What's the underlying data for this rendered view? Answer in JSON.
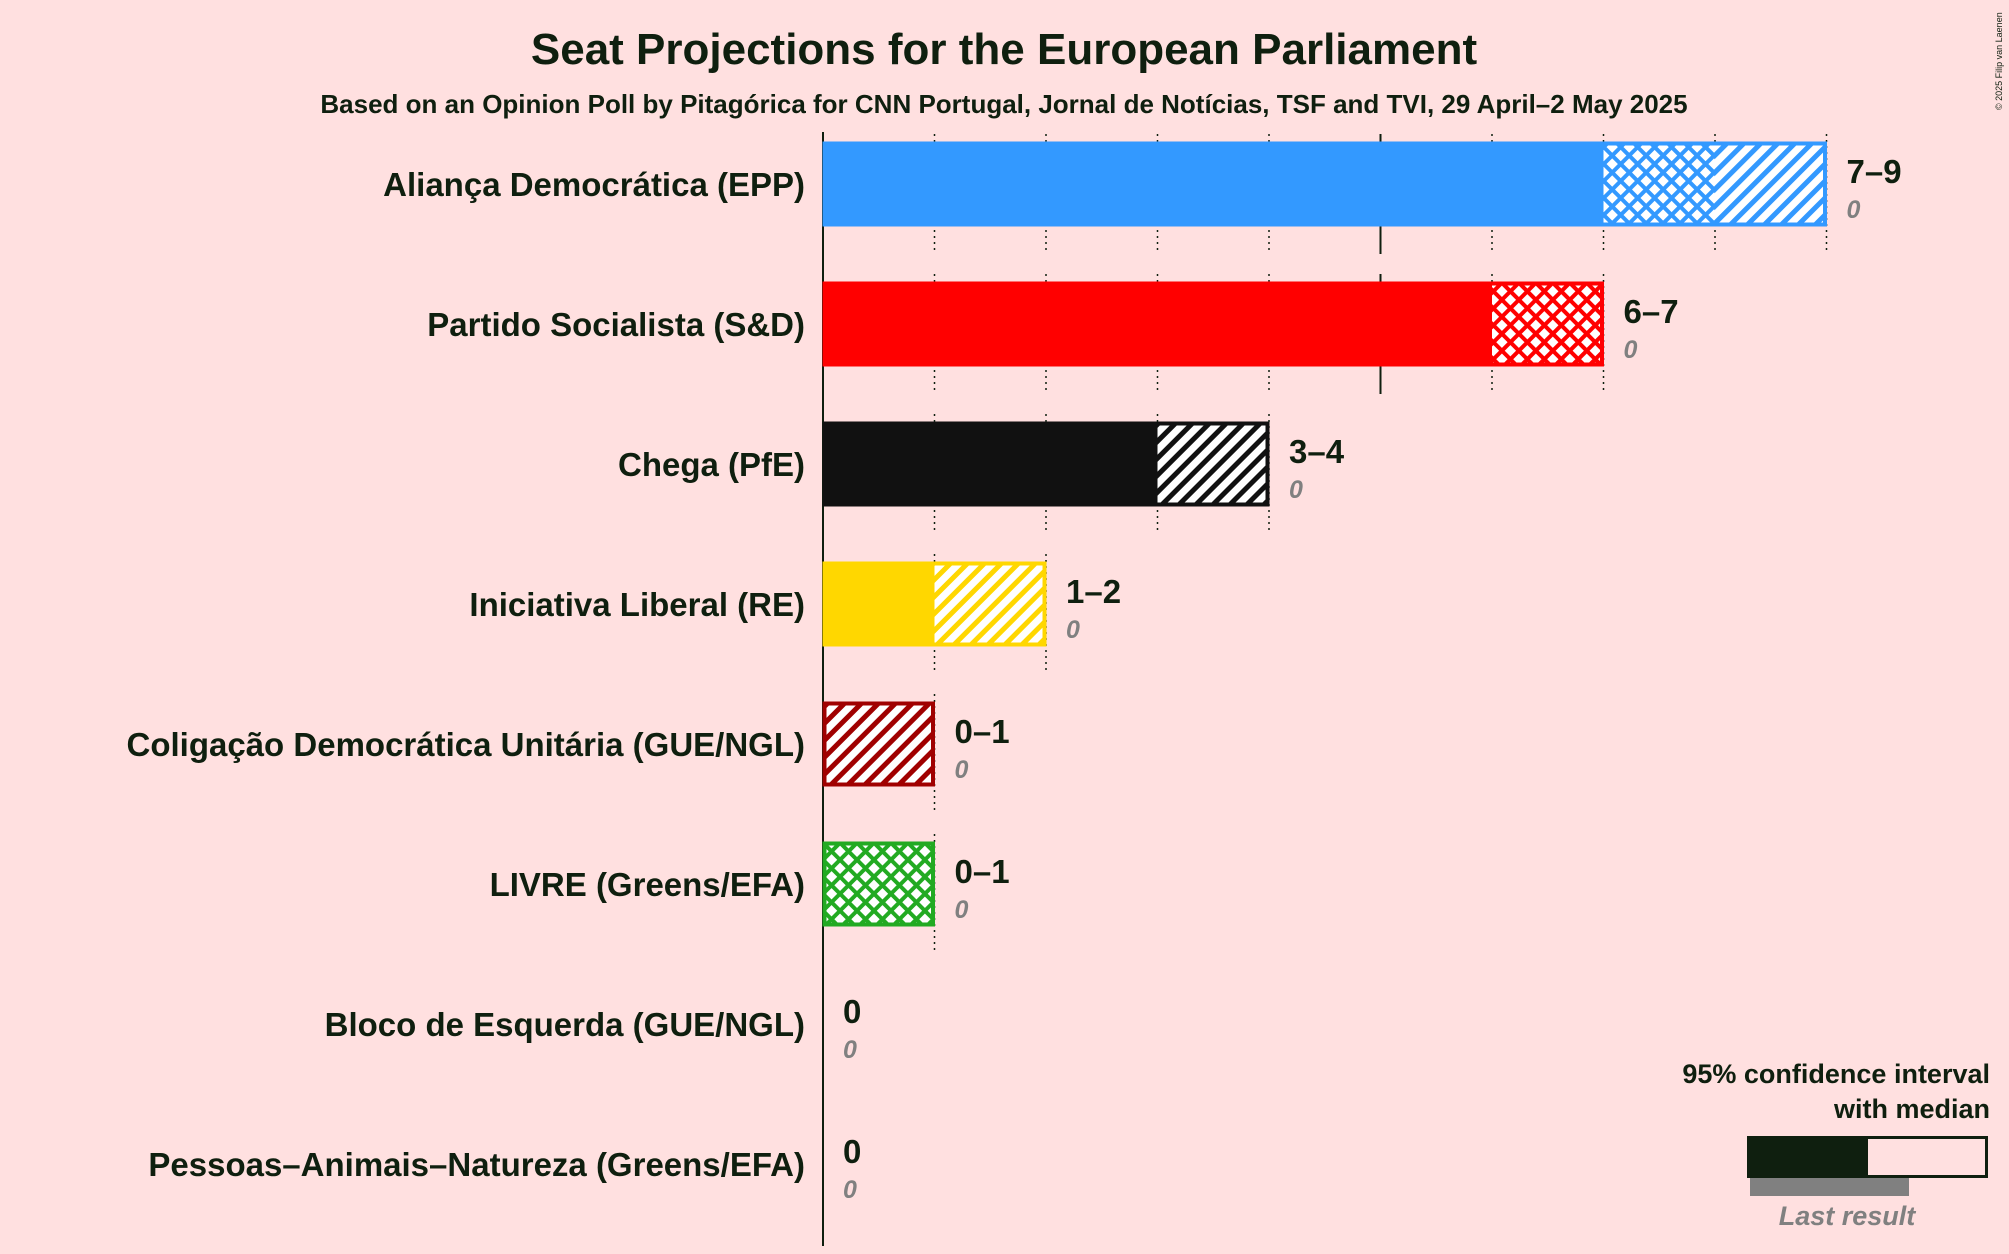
{
  "chart_data": {
    "type": "bar",
    "title": "Seat Projections for the European Parliament",
    "subtitle": "Based on an Opinion Poll by Pitagórica for CNN Portugal, Jornal de Notícias, TSF and TVI, 29 April–2 May 2025",
    "copyright": "© 2025 Filip van Laenen",
    "xlim": [
      0,
      9
    ],
    "categories": [
      "Aliança Democrática (EPP)",
      "Partido Socialista (S&D)",
      "Chega (PfE)",
      "Iniciativa Liberal (RE)",
      "Coligação Democrática Unitária (GUE/NGL)",
      "LIVRE (Greens/EFA)",
      "Bloco de Esquerda (GUE/NGL)",
      "Pessoas–Animais–Natureza (Greens/EFA)"
    ],
    "series": [
      {
        "party": "Aliança Democrática (EPP)",
        "color": "#3399FF",
        "low": 7,
        "median": 8,
        "high": 9,
        "range_label": "7–9",
        "last_result": 0,
        "last_label": "0"
      },
      {
        "party": "Partido Socialista (S&D)",
        "color": "#FF0000",
        "low": 6,
        "median": 7,
        "high": 7,
        "range_label": "6–7",
        "last_result": 0,
        "last_label": "0"
      },
      {
        "party": "Chega (PfE)",
        "color": "#111111",
        "low": 3,
        "median": 3,
        "high": 4,
        "range_label": "3–4",
        "last_result": 0,
        "last_label": "0"
      },
      {
        "party": "Iniciativa Liberal (RE)",
        "color": "#FFD700",
        "low": 1,
        "median": 1,
        "high": 2,
        "range_label": "1–2",
        "last_result": 0,
        "last_label": "0"
      },
      {
        "party": "Coligação Democrática Unitária (GUE/NGL)",
        "color": "#A00000",
        "low": 0,
        "median": 0,
        "high": 1,
        "range_label": "0–1",
        "last_result": 0,
        "last_label": "0"
      },
      {
        "party": "LIVRE (Greens/EFA)",
        "color": "#22AA22",
        "low": 0,
        "median": 1,
        "high": 1,
        "range_label": "0–1",
        "last_result": 0,
        "last_label": "0"
      },
      {
        "party": "Bloco de Esquerda (GUE/NGL)",
        "color": "#CC0033",
        "low": 0,
        "median": 0,
        "high": 0,
        "range_label": "0",
        "last_result": 0,
        "last_label": "0"
      },
      {
        "party": "Pessoas–Animais–Natureza (Greens/EFA)",
        "color": "#008080",
        "low": 0,
        "median": 0,
        "high": 0,
        "range_label": "0",
        "last_result": 0,
        "last_label": "0"
      }
    ],
    "majority_line": 5,
    "legend": {
      "line1": "95% confidence interval",
      "line2": "with median",
      "last_result": "Last result",
      "placement": "bottom-right"
    }
  }
}
